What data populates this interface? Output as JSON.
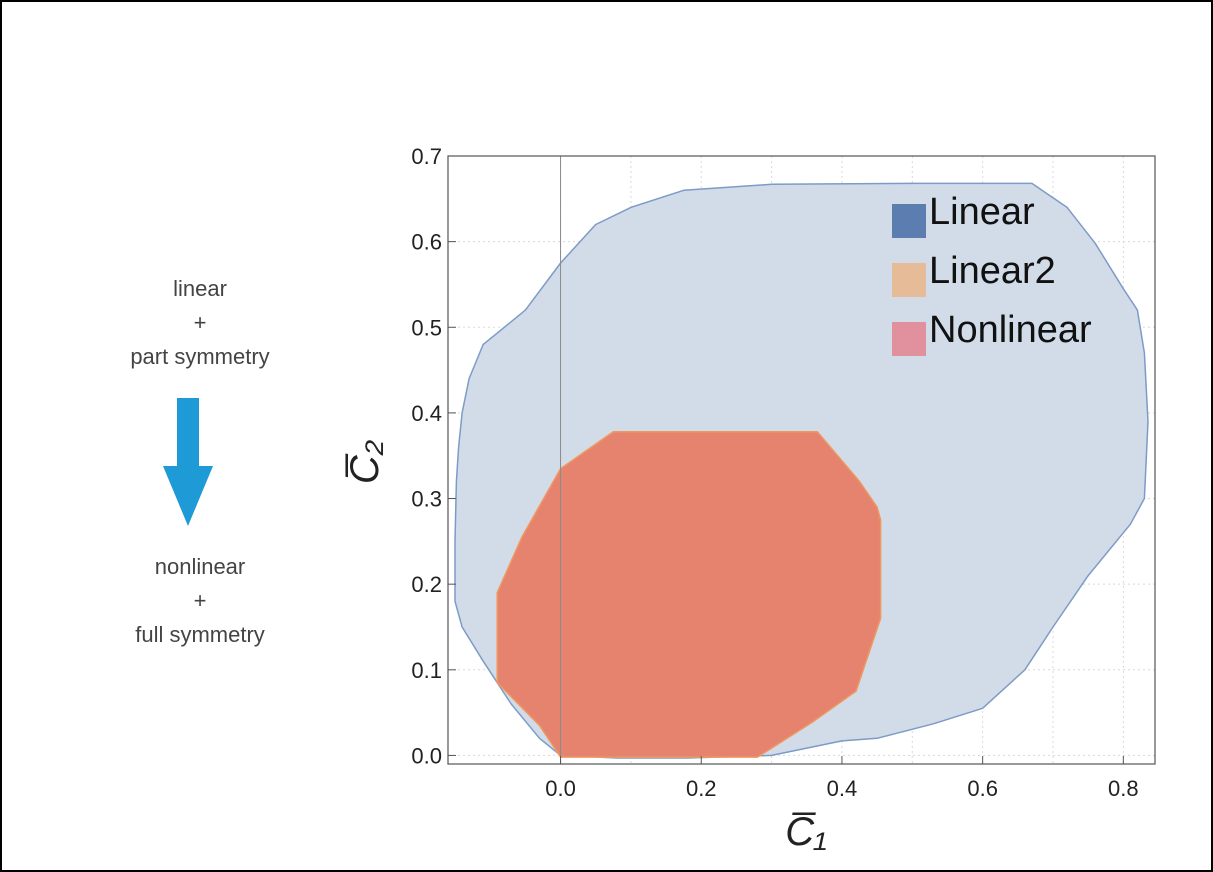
{
  "annotation": {
    "top_lines": [
      "linear",
      "+",
      "part symmetry"
    ],
    "bottom_lines": [
      "nonlinear",
      "+",
      "full symmetry"
    ],
    "arrow_icon": "down-arrow-icon",
    "arrow_color": "#1e9ad6"
  },
  "chart_data": {
    "type": "area",
    "xlabel": "C̅₁",
    "ylabel": "C̅₂",
    "xlim": [
      -0.16,
      0.845
    ],
    "ylim": [
      -0.01,
      0.7
    ],
    "x_ticks": [
      0.0,
      0.2,
      0.4,
      0.6,
      0.8
    ],
    "x_tick_labels": [
      "0.0",
      "0.2",
      "0.4",
      "0.6",
      "0.8"
    ],
    "y_ticks": [
      0.0,
      0.1,
      0.2,
      0.3,
      0.4,
      0.5,
      0.6,
      0.7
    ],
    "y_tick_labels": [
      "0.0",
      "0.1",
      "0.2",
      "0.3",
      "0.4",
      "0.5",
      "0.6",
      "0.7"
    ],
    "grid": true,
    "legend_position": "top-right",
    "legend": [
      {
        "name": "Linear",
        "color": "#5b7db0"
      },
      {
        "name": "Linear2",
        "color": "#e6bb98"
      },
      {
        "name": "Nonlinear",
        "color": "#e0919d"
      }
    ],
    "series": [
      {
        "name": "Linear",
        "fill": "#d2dce9",
        "stroke": "#7d9bc6",
        "points": [
          [
            0.0,
            0.575
          ],
          [
            0.05,
            0.62
          ],
          [
            0.1,
            0.64
          ],
          [
            0.175,
            0.66
          ],
          [
            0.3,
            0.667
          ],
          [
            0.5,
            0.668
          ],
          [
            0.65,
            0.668
          ],
          [
            0.67,
            0.668
          ],
          [
            0.72,
            0.64
          ],
          [
            0.76,
            0.598
          ],
          [
            0.8,
            0.545
          ],
          [
            0.82,
            0.52
          ],
          [
            0.83,
            0.47
          ],
          [
            0.835,
            0.39
          ],
          [
            0.83,
            0.3
          ],
          [
            0.81,
            0.27
          ],
          [
            0.75,
            0.21
          ],
          [
            0.7,
            0.15
          ],
          [
            0.66,
            0.1
          ],
          [
            0.6,
            0.055
          ],
          [
            0.53,
            0.037
          ],
          [
            0.45,
            0.02
          ],
          [
            0.4,
            0.017
          ],
          [
            0.3,
            0.0
          ],
          [
            0.18,
            -0.003
          ],
          [
            0.08,
            -0.003
          ],
          [
            0.0,
            0.0
          ],
          [
            -0.03,
            0.02
          ],
          [
            -0.07,
            0.06
          ],
          [
            -0.11,
            0.11
          ],
          [
            -0.14,
            0.15
          ],
          [
            -0.15,
            0.18
          ],
          [
            -0.15,
            0.25
          ],
          [
            -0.148,
            0.32
          ],
          [
            -0.145,
            0.36
          ],
          [
            -0.14,
            0.4
          ],
          [
            -0.13,
            0.44
          ],
          [
            -0.11,
            0.48
          ],
          [
            -0.08,
            0.5
          ],
          [
            -0.05,
            0.52
          ]
        ]
      },
      {
        "name": "Nonlinear",
        "fill": "#e5836f",
        "stroke": "#ef9960",
        "points": [
          [
            0.075,
            0.378
          ],
          [
            0.365,
            0.378
          ],
          [
            0.425,
            0.32
          ],
          [
            0.45,
            0.29
          ],
          [
            0.455,
            0.275
          ],
          [
            0.455,
            0.16
          ],
          [
            0.42,
            0.075
          ],
          [
            0.36,
            0.04
          ],
          [
            0.28,
            -0.002
          ],
          [
            0.0,
            -0.002
          ],
          [
            -0.03,
            0.035
          ],
          [
            -0.09,
            0.085
          ],
          [
            -0.09,
            0.19
          ],
          [
            -0.055,
            0.255
          ],
          [
            0.0,
            0.335
          ]
        ]
      }
    ]
  }
}
